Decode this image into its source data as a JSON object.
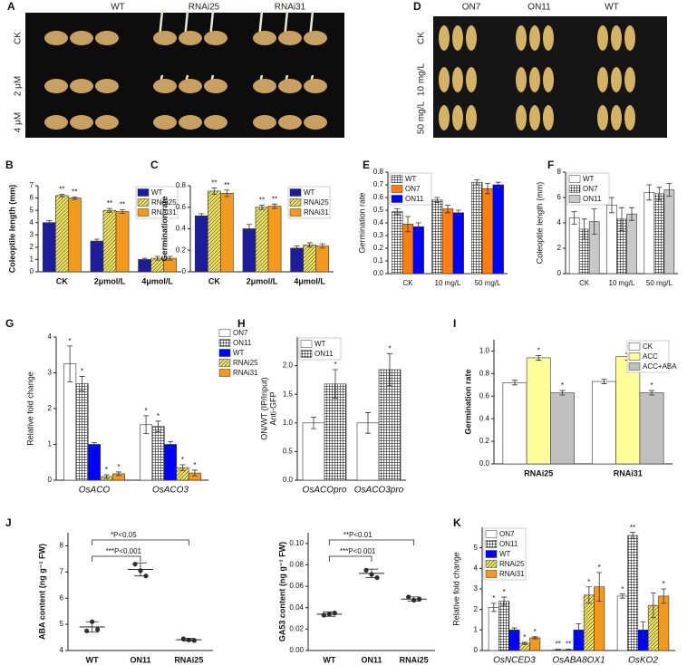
{
  "photos": [
    {
      "panel": "A",
      "columns": [
        "WT",
        "RNAi25",
        "RNAi31"
      ],
      "rows": [
        "CK",
        "2 μM",
        "4 μM"
      ]
    },
    {
      "panel": "D",
      "columns": [
        "ON7",
        "ON11",
        "WT"
      ],
      "rows": [
        "CK",
        "10 mg/L",
        "50 mg/L"
      ]
    }
  ],
  "chart_data": [
    {
      "type": "bar",
      "panel": "B",
      "y_label": "Coleoptile length (mm)",
      "categories": [
        "CK",
        "2μmol/L",
        "4μmol/L"
      ],
      "category_style": "bold",
      "ylim": [
        0,
        7
      ],
      "yticks": [
        0,
        1,
        2,
        3,
        4,
        5,
        6,
        7
      ],
      "legend": "upper right",
      "series": [
        {
          "name": "WT",
          "color": "#1c1c9c",
          "values": [
            4.0,
            2.5,
            1.0
          ],
          "errors": [
            0.15,
            0.15,
            0.1
          ]
        },
        {
          "name": "RNAi25",
          "color": "#f2e65a",
          "pattern": "diagonal",
          "values": [
            6.2,
            5.0,
            1.1
          ],
          "errors": [
            0.1,
            0.15,
            0.15
          ],
          "annotations": [
            "**",
            "**",
            null
          ]
        },
        {
          "name": "RNAi31",
          "color": "#f39a1e",
          "values": [
            6.0,
            4.9,
            1.1
          ],
          "errors": [
            0.1,
            0.15,
            0.15
          ],
          "annotations": [
            "**",
            "**",
            null
          ]
        }
      ]
    },
    {
      "type": "bar",
      "panel": "C",
      "y_label": "Germination rate",
      "categories": [
        "CK",
        "2μmol/L",
        "4μmol/L"
      ],
      "category_style": "bold",
      "ylim": [
        0,
        0.8
      ],
      "yticks": [
        0,
        0.2,
        0.4,
        0.6,
        0.8
      ],
      "legend": "upper right",
      "series": [
        {
          "name": "WT",
          "color": "#1c1c9c",
          "values": [
            0.52,
            0.4,
            0.22
          ],
          "errors": [
            0.02,
            0.04,
            0.02
          ]
        },
        {
          "name": "RNAi25",
          "color": "#f2e65a",
          "pattern": "diagonal",
          "values": [
            0.75,
            0.6,
            0.25
          ],
          "errors": [
            0.03,
            0.02,
            0.02
          ],
          "annotations": [
            "**",
            "**",
            null
          ]
        },
        {
          "name": "RNAi31",
          "color": "#f39a1e",
          "values": [
            0.73,
            0.61,
            0.24
          ],
          "errors": [
            0.03,
            0.02,
            0.02
          ],
          "annotations": [
            "**",
            "**",
            null
          ]
        }
      ]
    },
    {
      "type": "bar",
      "panel": "E",
      "y_label": "Germination rate",
      "categories": [
        "CK",
        "10 mg/L",
        "50 mg/L"
      ],
      "category_style": "normal",
      "ylim": [
        0,
        0.8
      ],
      "yticks": [
        {
          "value": 0,
          "label": "0.0"
        },
        0.1,
        0.2,
        0.3,
        0.4,
        0.5,
        0.6,
        0.7,
        0.8
      ],
      "legend": "upper left",
      "series": [
        {
          "name": "WT",
          "color": "#000000",
          "pattern": "grid",
          "values": [
            0.49,
            0.58,
            0.72
          ],
          "errors": [
            0.02,
            0.02,
            0.02
          ]
        },
        {
          "name": "ON7",
          "color": "#ff7f0e",
          "values": [
            0.39,
            0.51,
            0.67
          ],
          "errors": [
            0.06,
            0.03,
            0.04
          ]
        },
        {
          "name": "ON11",
          "color": "#0000ff",
          "values": [
            0.37,
            0.48,
            0.7
          ],
          "errors": [
            0.03,
            0.02,
            0.02
          ]
        }
      ]
    },
    {
      "type": "bar",
      "panel": "F",
      "y_label": "Coleoptile length (mm)",
      "categories": [
        "CK",
        "10 mg/L",
        "50 mg/L"
      ],
      "category_style": "normal",
      "ylim": [
        0,
        8
      ],
      "yticks": [
        0,
        2,
        4,
        6,
        8
      ],
      "legend": "upper left",
      "series": [
        {
          "name": "WT",
          "color": "#ffffff",
          "values": [
            4.4,
            5.4,
            6.4
          ],
          "errors": [
            0.5,
            0.6,
            0.6
          ]
        },
        {
          "name": "ON7",
          "color": "#000000",
          "pattern": "grid",
          "values": [
            3.5,
            4.3,
            6.3
          ],
          "errors": [
            0.8,
            0.9,
            0.5
          ]
        },
        {
          "name": "ON11",
          "color": "#c8c8c8",
          "values": [
            4.1,
            4.7,
            6.6
          ],
          "errors": [
            1.0,
            0.5,
            0.5
          ]
        }
      ]
    },
    {
      "type": "bar",
      "panel": "G",
      "y_label": "Relative fold change",
      "categories": [
        "OsACO",
        "OsACO3"
      ],
      "category_style": "italic",
      "ylim": [
        0,
        4
      ],
      "yticks": [
        0,
        1,
        2,
        3,
        4
      ],
      "legend": "right",
      "series": [
        {
          "name": "ON7",
          "color": "#ffffff",
          "values": [
            3.25,
            1.55
          ],
          "errors": [
            0.5,
            0.25
          ],
          "annotations": [
            "*",
            "*"
          ]
        },
        {
          "name": "ON11",
          "color": "#000000",
          "pattern": "grid",
          "values": [
            2.7,
            1.5
          ],
          "errors": [
            0.2,
            0.15
          ],
          "annotations": [
            "*",
            "*"
          ]
        },
        {
          "name": "WT",
          "color": "#0000ff",
          "values": [
            1.0,
            1.0
          ],
          "errors": [
            0.05,
            0.08
          ]
        },
        {
          "name": "RNAi25",
          "color": "#f2e65a",
          "pattern": "diagonal",
          "values": [
            0.1,
            0.35
          ],
          "errors": [
            0.05,
            0.08
          ],
          "annotations": [
            "*",
            "*"
          ]
        },
        {
          "name": "RNAi31",
          "color": "#f39a1e",
          "values": [
            0.18,
            0.2
          ],
          "errors": [
            0.05,
            0.08
          ],
          "annotations": [
            "*",
            "*"
          ]
        }
      ]
    },
    {
      "type": "bar",
      "panel": "H",
      "y_label": "ON/WT (IP/Input)",
      "y_label2": "Anti-GFP",
      "categories": [
        "OsACOpro",
        "OsACO3pro"
      ],
      "category_style": "italic",
      "ylim": [
        0,
        2.5
      ],
      "yticks": [
        {
          "value": 0,
          "label": "0.0"
        },
        0.5,
        {
          "value": 1,
          "label": "1.0"
        },
        1.5,
        {
          "value": 2,
          "label": "2.0"
        }
      ],
      "legend": "upper left",
      "series": [
        {
          "name": "WT",
          "color": "#ffffff",
          "values": [
            1.0,
            1.0
          ],
          "errors": [
            0.1,
            0.18
          ]
        },
        {
          "name": "ON11",
          "color": "#000000",
          "pattern": "grid",
          "values": [
            1.68,
            1.93
          ],
          "errors": [
            0.25,
            0.28
          ],
          "annotations": [
            "*",
            "*"
          ]
        }
      ]
    },
    {
      "type": "bar",
      "panel": "I",
      "y_label": "Germination rate",
      "categories": [
        "RNAi25",
        "RNAi31"
      ],
      "category_style": "bold",
      "ylim": [
        0,
        1.1
      ],
      "yticks": [
        {
          "value": 0,
          "label": "0.0"
        },
        0.2,
        0.4,
        0.6,
        0.8,
        {
          "value": 1,
          "label": "1.0"
        }
      ],
      "legend": "upper right",
      "series": [
        {
          "name": "CK",
          "color": "#ffffff",
          "values": [
            0.72,
            0.73
          ],
          "errors": [
            0.02,
            0.02
          ]
        },
        {
          "name": "ACC",
          "color": "#ffff99",
          "values": [
            0.94,
            0.95
          ],
          "errors": [
            0.02,
            0.03
          ],
          "annotations": [
            "*",
            "*"
          ]
        },
        {
          "name": "ACC+ABA",
          "color": "#c0c0c0",
          "values": [
            0.63,
            0.63
          ],
          "errors": [
            0.02,
            0.02
          ],
          "annotations": [
            "*",
            "*"
          ]
        }
      ]
    },
    {
      "type": "scatter",
      "panel": "J",
      "y_label": "ABA content (ng g⁻¹ FW)",
      "categories": [
        "WT",
        "ON11",
        "RNAi25"
      ],
      "category_style": "bold",
      "ylim": [
        4,
        8.5
      ],
      "yticks": [
        4,
        5,
        6,
        7,
        8
      ],
      "points": [
        [
          4.75,
          5.1,
          4.8
        ],
        [
          7.3,
          7.05,
          6.85
        ],
        [
          4.45,
          4.4,
          4.38
        ]
      ],
      "means": [
        4.9,
        7.1,
        4.41
      ],
      "sds": [
        0.2,
        0.25,
        0.05
      ],
      "annotations": [
        "*P<0.05",
        "***P<0.001"
      ]
    },
    {
      "type": "scatter",
      "y_label": "GA53 content (ng g⁻¹ FW)",
      "categories": [
        "WT",
        "ON11",
        "RNAi25"
      ],
      "category_style": "bold",
      "ylim": [
        0,
        0.11
      ],
      "yticks": [
        {
          "value": 0,
          "label": "0.00"
        },
        0.02,
        0.04,
        0.06,
        0.08,
        {
          "value": 0.1,
          "label": "0.10"
        }
      ],
      "points": [
        [
          0.033,
          0.034,
          0.035
        ],
        [
          0.075,
          0.071,
          0.068
        ],
        [
          0.05,
          0.047,
          0.048
        ]
      ],
      "means": [
        0.034,
        0.072,
        0.048
      ],
      "sds": [
        0.002,
        0.004,
        0.002
      ],
      "annotations": [
        "**P<0.01",
        "***P<0.001"
      ]
    },
    {
      "type": "bar",
      "panel": "K",
      "y_label": "Relative fold change",
      "categories": [
        "OsNCED3",
        "OsABA8OX1",
        "OsKO2"
      ],
      "category_style": "italic",
      "ylim": [
        0,
        6
      ],
      "yticks": [
        0,
        1,
        2,
        3,
        4,
        5
      ],
      "legend": "upper left",
      "series": [
        {
          "name": "ON7",
          "color": "#ffffff",
          "values": [
            2.1,
            0.04,
            2.65
          ],
          "errors": [
            0.2,
            0.02,
            0.1
          ],
          "annotations": [
            "*",
            "**",
            "*"
          ]
        },
        {
          "name": "ON11",
          "color": "#000000",
          "pattern": "grid",
          "values": [
            2.4,
            0.04,
            5.6
          ],
          "errors": [
            0.2,
            0.02,
            0.15
          ],
          "annotations": [
            "*",
            "**",
            "**"
          ]
        },
        {
          "name": "WT",
          "color": "#0000ff",
          "values": [
            1.0,
            1.0,
            1.0
          ],
          "errors": [
            0.1,
            0.3,
            0.4
          ]
        },
        {
          "name": "RNAi25",
          "color": "#f2e65a",
          "pattern": "diagonal",
          "values": [
            0.35,
            2.7,
            2.2
          ],
          "errors": [
            0.05,
            0.4,
            0.6
          ],
          "annotations": [
            "*",
            "*",
            null
          ]
        },
        {
          "name": "RNAi31",
          "color": "#f39a1e",
          "values": [
            0.62,
            3.1,
            2.65
          ],
          "errors": [
            0.05,
            0.7,
            0.35
          ],
          "annotations": [
            "*",
            "*",
            "*"
          ]
        }
      ]
    }
  ]
}
